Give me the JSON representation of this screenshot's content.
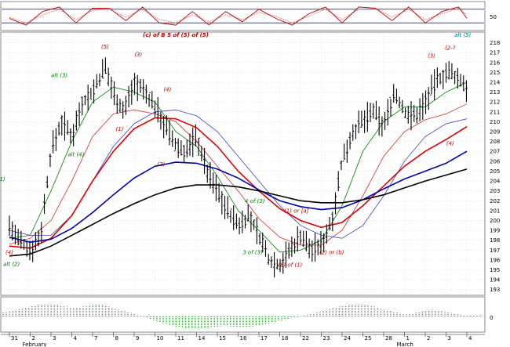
{
  "chart_data": {
    "type": "line",
    "instrument_scale": "price",
    "y_ticks": [
      193,
      194,
      195,
      196,
      197,
      198,
      199,
      200,
      201,
      202,
      203,
      204,
      205,
      206,
      207,
      208,
      209,
      210,
      211,
      212,
      213,
      214,
      215,
      216,
      217,
      218
    ],
    "ylim": [
      192.5,
      219
    ],
    "stoch_tick": "50",
    "oscillator_tick": "0",
    "x_ticks": [
      {
        "label": "31",
        "i": 0
      },
      {
        "label": "2",
        "i": 1
      },
      {
        "label": "3",
        "i": 2
      },
      {
        "label": "4",
        "i": 3
      },
      {
        "label": "7",
        "i": 4
      },
      {
        "label": "8",
        "i": 5
      },
      {
        "label": "9",
        "i": 6
      },
      {
        "label": "10",
        "i": 7
      },
      {
        "label": "11",
        "i": 8
      },
      {
        "label": "14",
        "i": 9
      },
      {
        "label": "15",
        "i": 10
      },
      {
        "label": "16",
        "i": 11
      },
      {
        "label": "17",
        "i": 12
      },
      {
        "label": "18",
        "i": 13
      },
      {
        "label": "22",
        "i": 14
      },
      {
        "label": "23",
        "i": 15
      },
      {
        "label": "24",
        "i": 16
      },
      {
        "label": "25",
        "i": 17
      },
      {
        "label": "28",
        "i": 18
      },
      {
        "label": "1",
        "i": 19
      },
      {
        "label": "2",
        "i": 20
      },
      {
        "label": "3",
        "i": 21
      },
      {
        "label": "4",
        "i": 22
      }
    ],
    "months": [
      {
        "label": "February",
        "i": 1
      },
      {
        "label": "March",
        "i": 19
      }
    ],
    "price_path": [
      [
        0,
        199.5
      ],
      [
        0.4,
        198
      ],
      [
        1,
        197
      ],
      [
        1.5,
        198.5
      ],
      [
        2,
        207
      ],
      [
        2.5,
        210
      ],
      [
        3,
        208.5
      ],
      [
        3.5,
        212
      ],
      [
        4,
        213
      ],
      [
        4.6,
        215.5
      ],
      [
        5,
        213
      ],
      [
        5.5,
        211
      ],
      [
        6,
        214
      ],
      [
        6.5,
        213
      ],
      [
        7,
        211.5
      ],
      [
        7.5,
        209.5
      ],
      [
        8,
        207.5
      ],
      [
        8.5,
        207
      ],
      [
        9,
        208.5
      ],
      [
        9.5,
        205
      ],
      [
        10,
        203
      ],
      [
        10.5,
        201
      ],
      [
        11,
        199.5
      ],
      [
        11.5,
        200.5
      ],
      [
        12,
        198.5
      ],
      [
        12.5,
        196
      ],
      [
        13,
        195.5
      ],
      [
        13.5,
        197
      ],
      [
        14,
        198.5
      ],
      [
        14.5,
        197
      ],
      [
        15,
        197.5
      ],
      [
        15.5,
        200
      ],
      [
        16,
        206
      ],
      [
        16.5,
        209
      ],
      [
        17,
        210
      ],
      [
        17.5,
        211
      ],
      [
        18,
        209.5
      ],
      [
        18.5,
        213
      ],
      [
        19,
        211
      ],
      [
        19.5,
        210.5
      ],
      [
        20,
        212
      ],
      [
        20.5,
        214
      ],
      [
        21,
        215
      ],
      [
        21.5,
        214.5
      ],
      [
        22,
        213.5
      ]
    ],
    "series": [
      {
        "key": "ma5",
        "color": "#008000",
        "values": [
          [
            0,
            198.2
          ],
          [
            1,
            198.5
          ],
          [
            2,
            203
          ],
          [
            3,
            208
          ],
          [
            4,
            212
          ],
          [
            5,
            213.5
          ],
          [
            6,
            213
          ],
          [
            7,
            212
          ],
          [
            8,
            209
          ],
          [
            9,
            207.5
          ],
          [
            10,
            204.5
          ],
          [
            11,
            201
          ],
          [
            12,
            199
          ],
          [
            13,
            196.8
          ],
          [
            14,
            197
          ],
          [
            15,
            198
          ],
          [
            16,
            201.5
          ],
          [
            17,
            207
          ],
          [
            18,
            210
          ],
          [
            19,
            211.5
          ],
          [
            20,
            211.5
          ],
          [
            21,
            213
          ],
          [
            22,
            214
          ]
        ]
      },
      {
        "key": "ma10",
        "color": "#d03030",
        "values": [
          [
            0,
            197.6
          ],
          [
            1,
            198.2
          ],
          [
            2,
            200
          ],
          [
            3,
            204
          ],
          [
            4,
            208.5
          ],
          [
            5,
            210.8
          ],
          [
            6,
            211.2
          ],
          [
            7,
            210.8
          ],
          [
            8,
            210
          ],
          [
            9,
            208
          ],
          [
            10,
            205.5
          ],
          [
            11,
            203
          ],
          [
            12,
            200.2
          ],
          [
            13,
            198.3
          ],
          [
            14,
            197.5
          ],
          [
            15,
            197.5
          ],
          [
            16,
            199
          ],
          [
            17,
            202.5
          ],
          [
            18,
            206.5
          ],
          [
            19,
            209
          ],
          [
            20,
            210.2
          ],
          [
            21,
            210.8
          ],
          [
            22,
            211.8
          ]
        ]
      },
      {
        "key": "ma20",
        "color": "#4040c0",
        "values": [
          [
            0,
            199
          ],
          [
            1,
            198.5
          ],
          [
            2,
            198.5
          ],
          [
            3,
            200.5
          ],
          [
            4,
            204
          ],
          [
            5,
            207.5
          ],
          [
            6,
            209.8
          ],
          [
            7,
            211
          ],
          [
            8,
            211.2
          ],
          [
            9,
            210.6
          ],
          [
            10,
            209
          ],
          [
            11,
            206.5
          ],
          [
            12,
            204
          ],
          [
            13,
            201.5
          ],
          [
            14,
            199.5
          ],
          [
            15,
            198.5
          ],
          [
            16,
            198.2
          ],
          [
            17,
            199.5
          ],
          [
            18,
            202.5
          ],
          [
            19,
            206
          ],
          [
            20,
            208.5
          ],
          [
            21,
            209.8
          ],
          [
            22,
            210.3
          ]
        ]
      },
      {
        "key": "ma_red",
        "color": "#e00000",
        "values": [
          [
            0,
            197.4
          ],
          [
            1,
            197.2
          ],
          [
            2,
            198.2
          ],
          [
            3,
            200.5
          ],
          [
            4,
            204
          ],
          [
            5,
            207
          ],
          [
            6,
            209.3
          ],
          [
            7,
            210.4
          ],
          [
            8,
            210.3
          ],
          [
            9,
            209.4
          ],
          [
            10,
            207.5
          ],
          [
            11,
            205
          ],
          [
            12,
            203
          ],
          [
            13,
            201.2
          ],
          [
            14,
            200
          ],
          [
            15,
            199.3
          ],
          [
            16,
            199.8
          ],
          [
            17,
            201.5
          ],
          [
            18,
            203.5
          ],
          [
            19,
            205.5
          ],
          [
            20,
            207
          ],
          [
            21,
            208.2
          ],
          [
            22,
            209.5
          ]
        ]
      },
      {
        "key": "ma50",
        "color": "#0000b0",
        "values": [
          [
            0,
            198.3
          ],
          [
            1,
            197.8
          ],
          [
            2,
            198.1
          ],
          [
            3,
            199.2
          ],
          [
            4,
            200.8
          ],
          [
            5,
            202.6
          ],
          [
            6,
            204.3
          ],
          [
            7,
            205.5
          ],
          [
            8,
            205.9
          ],
          [
            9,
            205.8
          ],
          [
            10,
            205.2
          ],
          [
            11,
            204.3
          ],
          [
            12,
            203.1
          ],
          [
            13,
            202
          ],
          [
            14,
            201.4
          ],
          [
            15,
            201.1
          ],
          [
            16,
            201.3
          ],
          [
            17,
            202.1
          ],
          [
            18,
            203.2
          ],
          [
            19,
            204.2
          ],
          [
            20,
            205
          ],
          [
            21,
            205.8
          ],
          [
            22,
            207
          ]
        ]
      },
      {
        "key": "ma200",
        "color": "#000000",
        "values": [
          [
            0,
            196.4
          ],
          [
            1,
            196.6
          ],
          [
            2,
            197.4
          ],
          [
            3,
            198.5
          ],
          [
            4,
            199.6
          ],
          [
            5,
            200.7
          ],
          [
            6,
            201.7
          ],
          [
            7,
            202.6
          ],
          [
            8,
            203.3
          ],
          [
            9,
            203.6
          ],
          [
            10,
            203.6
          ],
          [
            11,
            203.4
          ],
          [
            12,
            203
          ],
          [
            13,
            202.5
          ],
          [
            14,
            202
          ],
          [
            15,
            201.8
          ],
          [
            16,
            201.8
          ],
          [
            17,
            202.1
          ],
          [
            18,
            202.6
          ],
          [
            19,
            203.3
          ],
          [
            20,
            204
          ],
          [
            21,
            204.6
          ],
          [
            22,
            205.2
          ]
        ]
      }
    ],
    "annotations": [
      {
        "text": "(c) of B 5 of (5) of (5)",
        "i": 8.0,
        "y": 218.6,
        "color": "#c00000"
      },
      {
        "text": "alt (5)",
        "i": 21.8,
        "y": 218.6,
        "color": "#008080"
      },
      {
        "text": "(5)",
        "i": 4.6,
        "y": 217.4,
        "color": "#c00000"
      },
      {
        "text": "(3)",
        "i": 6.2,
        "y": 216.6,
        "color": "#c00000"
      },
      {
        "text": "(3)",
        "i": 20.3,
        "y": 216.5,
        "color": "#c00000"
      },
      {
        "text": "(2-?",
        "i": 21.2,
        "y": 217.3,
        "color": "#c00000"
      },
      {
        "text": "alt (3)",
        "i": 2.4,
        "y": 214.5,
        "color": "#008000"
      },
      {
        "text": "(4)",
        "i": 7.6,
        "y": 213.1,
        "color": "#c00000"
      },
      {
        "text": "(1)",
        "i": 5.3,
        "y": 209.1,
        "color": "#c00000"
      },
      {
        "text": "(4)",
        "i": 21.2,
        "y": 207.6,
        "color": "#c00000"
      },
      {
        "text": "alt (4)",
        "i": 3.2,
        "y": 206.5,
        "color": "#008000"
      },
      {
        "text": "(2)",
        "i": 7.3,
        "y": 205.5,
        "color": "#c00000"
      },
      {
        "text": "alt (1)",
        "i": -0.6,
        "y": 204,
        "color": "#008000"
      },
      {
        "text": "(3)",
        "i": -0.7,
        "y": 203,
        "color": "#c00000"
      },
      {
        "text": "4 of (3)",
        "i": 11.8,
        "y": 201.8,
        "color": "#008000"
      },
      {
        "text": "(1) or [a]",
        "i": 13.8,
        "y": 200.8,
        "color": "#c00000"
      },
      {
        "text": "(4)",
        "i": 0.0,
        "y": 196.6,
        "color": "#c00000"
      },
      {
        "text": "3 of (3)",
        "i": 11.7,
        "y": 196.6,
        "color": "#008000"
      },
      {
        "text": "(2) or (b)",
        "i": 15.5,
        "y": 196.6,
        "color": "#c00000"
      },
      {
        "text": "alt (2)",
        "i": 0.1,
        "y": 195.4,
        "color": "#008000"
      },
      {
        "text": "(5) of (1)",
        "i": 13.5,
        "y": 195.3,
        "color": "#c00000"
      }
    ],
    "stochastic": {
      "levels_color": "#4040c0",
      "fast": [
        [
          0,
          40
        ],
        [
          0.8,
          10
        ],
        [
          1.6,
          70
        ],
        [
          2.4,
          90
        ],
        [
          3.2,
          20
        ],
        [
          4,
          85
        ],
        [
          4.8,
          85
        ],
        [
          5.6,
          30
        ],
        [
          6.4,
          90
        ],
        [
          7.2,
          20
        ],
        [
          8,
          10
        ],
        [
          8.8,
          70
        ],
        [
          9.6,
          10
        ],
        [
          10.4,
          70
        ],
        [
          11.2,
          25
        ],
        [
          12,
          80
        ],
        [
          12.8,
          40
        ],
        [
          13.6,
          10
        ],
        [
          14.4,
          60
        ],
        [
          15.2,
          90
        ],
        [
          16,
          20
        ],
        [
          16.8,
          90
        ],
        [
          17.6,
          85
        ],
        [
          18.4,
          30
        ],
        [
          19.2,
          90
        ],
        [
          20,
          20
        ],
        [
          20.8,
          70
        ],
        [
          21.6,
          90
        ],
        [
          22,
          40
        ]
      ],
      "slow": [
        [
          0,
          45
        ],
        [
          0.8,
          20
        ],
        [
          1.6,
          55
        ],
        [
          2.4,
          80
        ],
        [
          3.2,
          35
        ],
        [
          4,
          75
        ],
        [
          4.8,
          80
        ],
        [
          5.6,
          45
        ],
        [
          6.4,
          80
        ],
        [
          7.2,
          35
        ],
        [
          8,
          20
        ],
        [
          8.8,
          55
        ],
        [
          9.6,
          25
        ],
        [
          10.4,
          55
        ],
        [
          11.2,
          35
        ],
        [
          12,
          65
        ],
        [
          12.8,
          50
        ],
        [
          13.6,
          20
        ],
        [
          14.4,
          50
        ],
        [
          15.2,
          80
        ],
        [
          16,
          35
        ],
        [
          16.8,
          80
        ],
        [
          17.6,
          85
        ],
        [
          18.4,
          45
        ],
        [
          19.2,
          80
        ],
        [
          20,
          35
        ],
        [
          20.8,
          60
        ],
        [
          21.6,
          85
        ],
        [
          22,
          55
        ]
      ]
    },
    "oscillator": [
      1,
      1.5,
      2.2,
      2.8,
      3,
      2.4,
      2,
      2.6,
      2.9,
      2,
      1.2,
      0.4,
      -0.6,
      -1.5,
      -2.3,
      -2.8,
      -3,
      -2.6,
      -2.2,
      -2.4,
      -2.6,
      -2,
      -1.4,
      -0.8,
      -0.2,
      0.5,
      1.2,
      2,
      2.6,
      3,
      2.6,
      1.8,
      1,
      0.5,
      1,
      1.6,
      1.2,
      0.6,
      0.2,
      0.4
    ]
  }
}
